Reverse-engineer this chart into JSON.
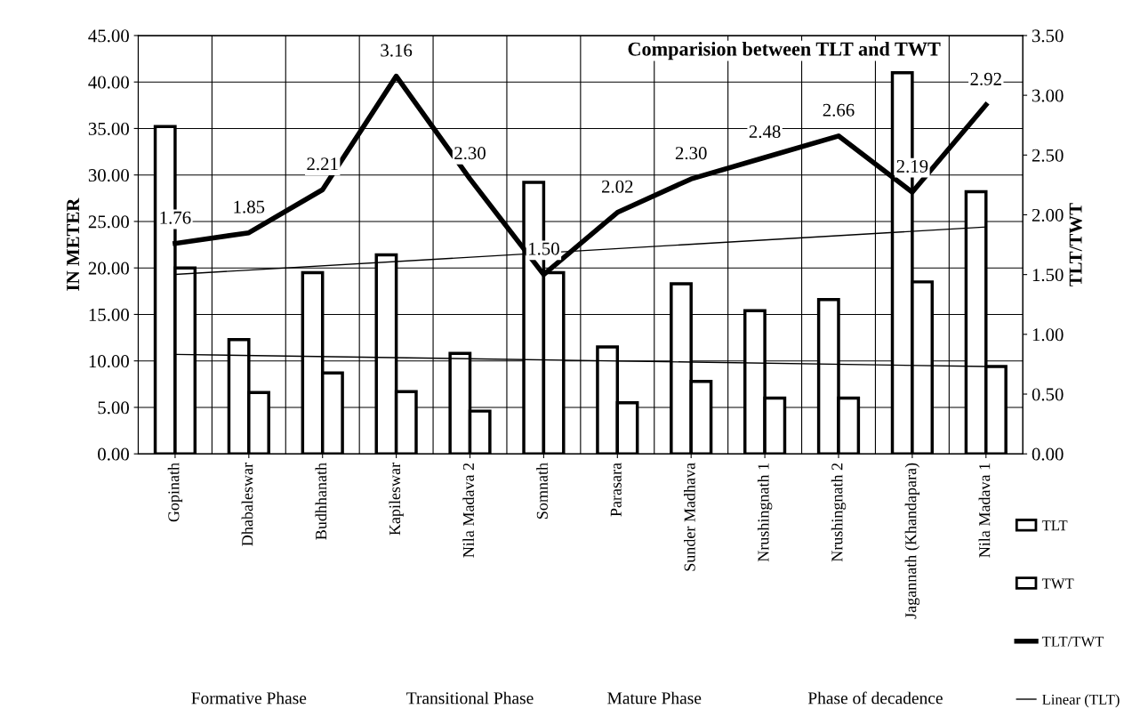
{
  "chart_data": {
    "type": "bar",
    "title": "Comparision between TLT and TWT",
    "ylabel": "IN METER",
    "y2label": "TLT/TWT",
    "categories": [
      "Gopinath",
      "Dhabaleswar",
      "Budhhanath",
      "Kapileswar",
      "Nila Madava 2",
      "Somnath",
      "Parasara",
      "Sunder Madhava",
      "Nrushingnath 1",
      "Nrushingnath 2",
      "Jagannath (Khandapara)",
      "Nila Madava 1"
    ],
    "series": [
      {
        "name": "TLT",
        "color": "#ffffff",
        "values": [
          35.2,
          12.3,
          19.5,
          21.4,
          10.8,
          29.2,
          11.5,
          18.3,
          15.4,
          16.6,
          41.0,
          28.2
        ]
      },
      {
        "name": "TWT",
        "color": "#ffffff",
        "values": [
          20.0,
          6.6,
          8.7,
          6.7,
          4.6,
          19.5,
          5.5,
          7.8,
          6.0,
          6.0,
          18.5,
          9.4
        ]
      },
      {
        "name": "TLT/TWT",
        "type": "line",
        "axis": "y2",
        "color": "#000000",
        "values": [
          1.76,
          1.85,
          2.21,
          3.16,
          2.3,
          1.5,
          2.02,
          2.3,
          2.48,
          2.66,
          2.19,
          2.92
        ],
        "value_labels": [
          "1.76",
          "1.85",
          "2.21",
          "3.16",
          "2.30",
          "1.50",
          "2.02",
          "2.30",
          "2.48",
          "2.66",
          "2.19",
          "2.92"
        ]
      },
      {
        "name": "Linear (TLT)",
        "type": "line",
        "color": "#000000",
        "values": [
          19.3,
          null,
          null,
          null,
          null,
          null,
          null,
          null,
          null,
          null,
          null,
          24.4
        ]
      },
      {
        "type": "line",
        "color": "#000000",
        "values": [
          10.7,
          null,
          null,
          null,
          null,
          null,
          null,
          null,
          null,
          null,
          null,
          9.4
        ]
      }
    ],
    "ylim": [
      0,
      45
    ],
    "yticks": [
      {
        "value": 0,
        "label": "0.00"
      },
      {
        "value": 5,
        "label": "5.00"
      },
      {
        "value": 10,
        "label": "10.00"
      },
      {
        "value": 15,
        "label": "15.00"
      },
      {
        "value": 20,
        "label": "20.00"
      },
      {
        "value": 25,
        "label": "25.00"
      },
      {
        "value": 30,
        "label": "30.00"
      },
      {
        "value": 35,
        "label": "35.00"
      },
      {
        "value": 40,
        "label": "40.00"
      },
      {
        "value": 45,
        "label": "45.00"
      }
    ],
    "y2lim": [
      0,
      3.5
    ],
    "y2ticks": [
      {
        "value": 0,
        "label": "0.00"
      },
      {
        "value": 0.5,
        "label": "0.50"
      },
      {
        "value": 1,
        "label": "1.00"
      },
      {
        "value": 1.5,
        "label": "1.50"
      },
      {
        "value": 2,
        "label": "2.00"
      },
      {
        "value": 2.5,
        "label": "2.50"
      },
      {
        "value": 3,
        "label": "3.00"
      },
      {
        "value": 3.5,
        "label": "3.50"
      }
    ],
    "annotations": [
      "Formative Phase",
      "Transitional Phase",
      "Mature Phase",
      "Phase of decadence"
    ],
    "grid": true,
    "legend": "bottom right",
    "marker": "none",
    "line_style": "solid"
  }
}
